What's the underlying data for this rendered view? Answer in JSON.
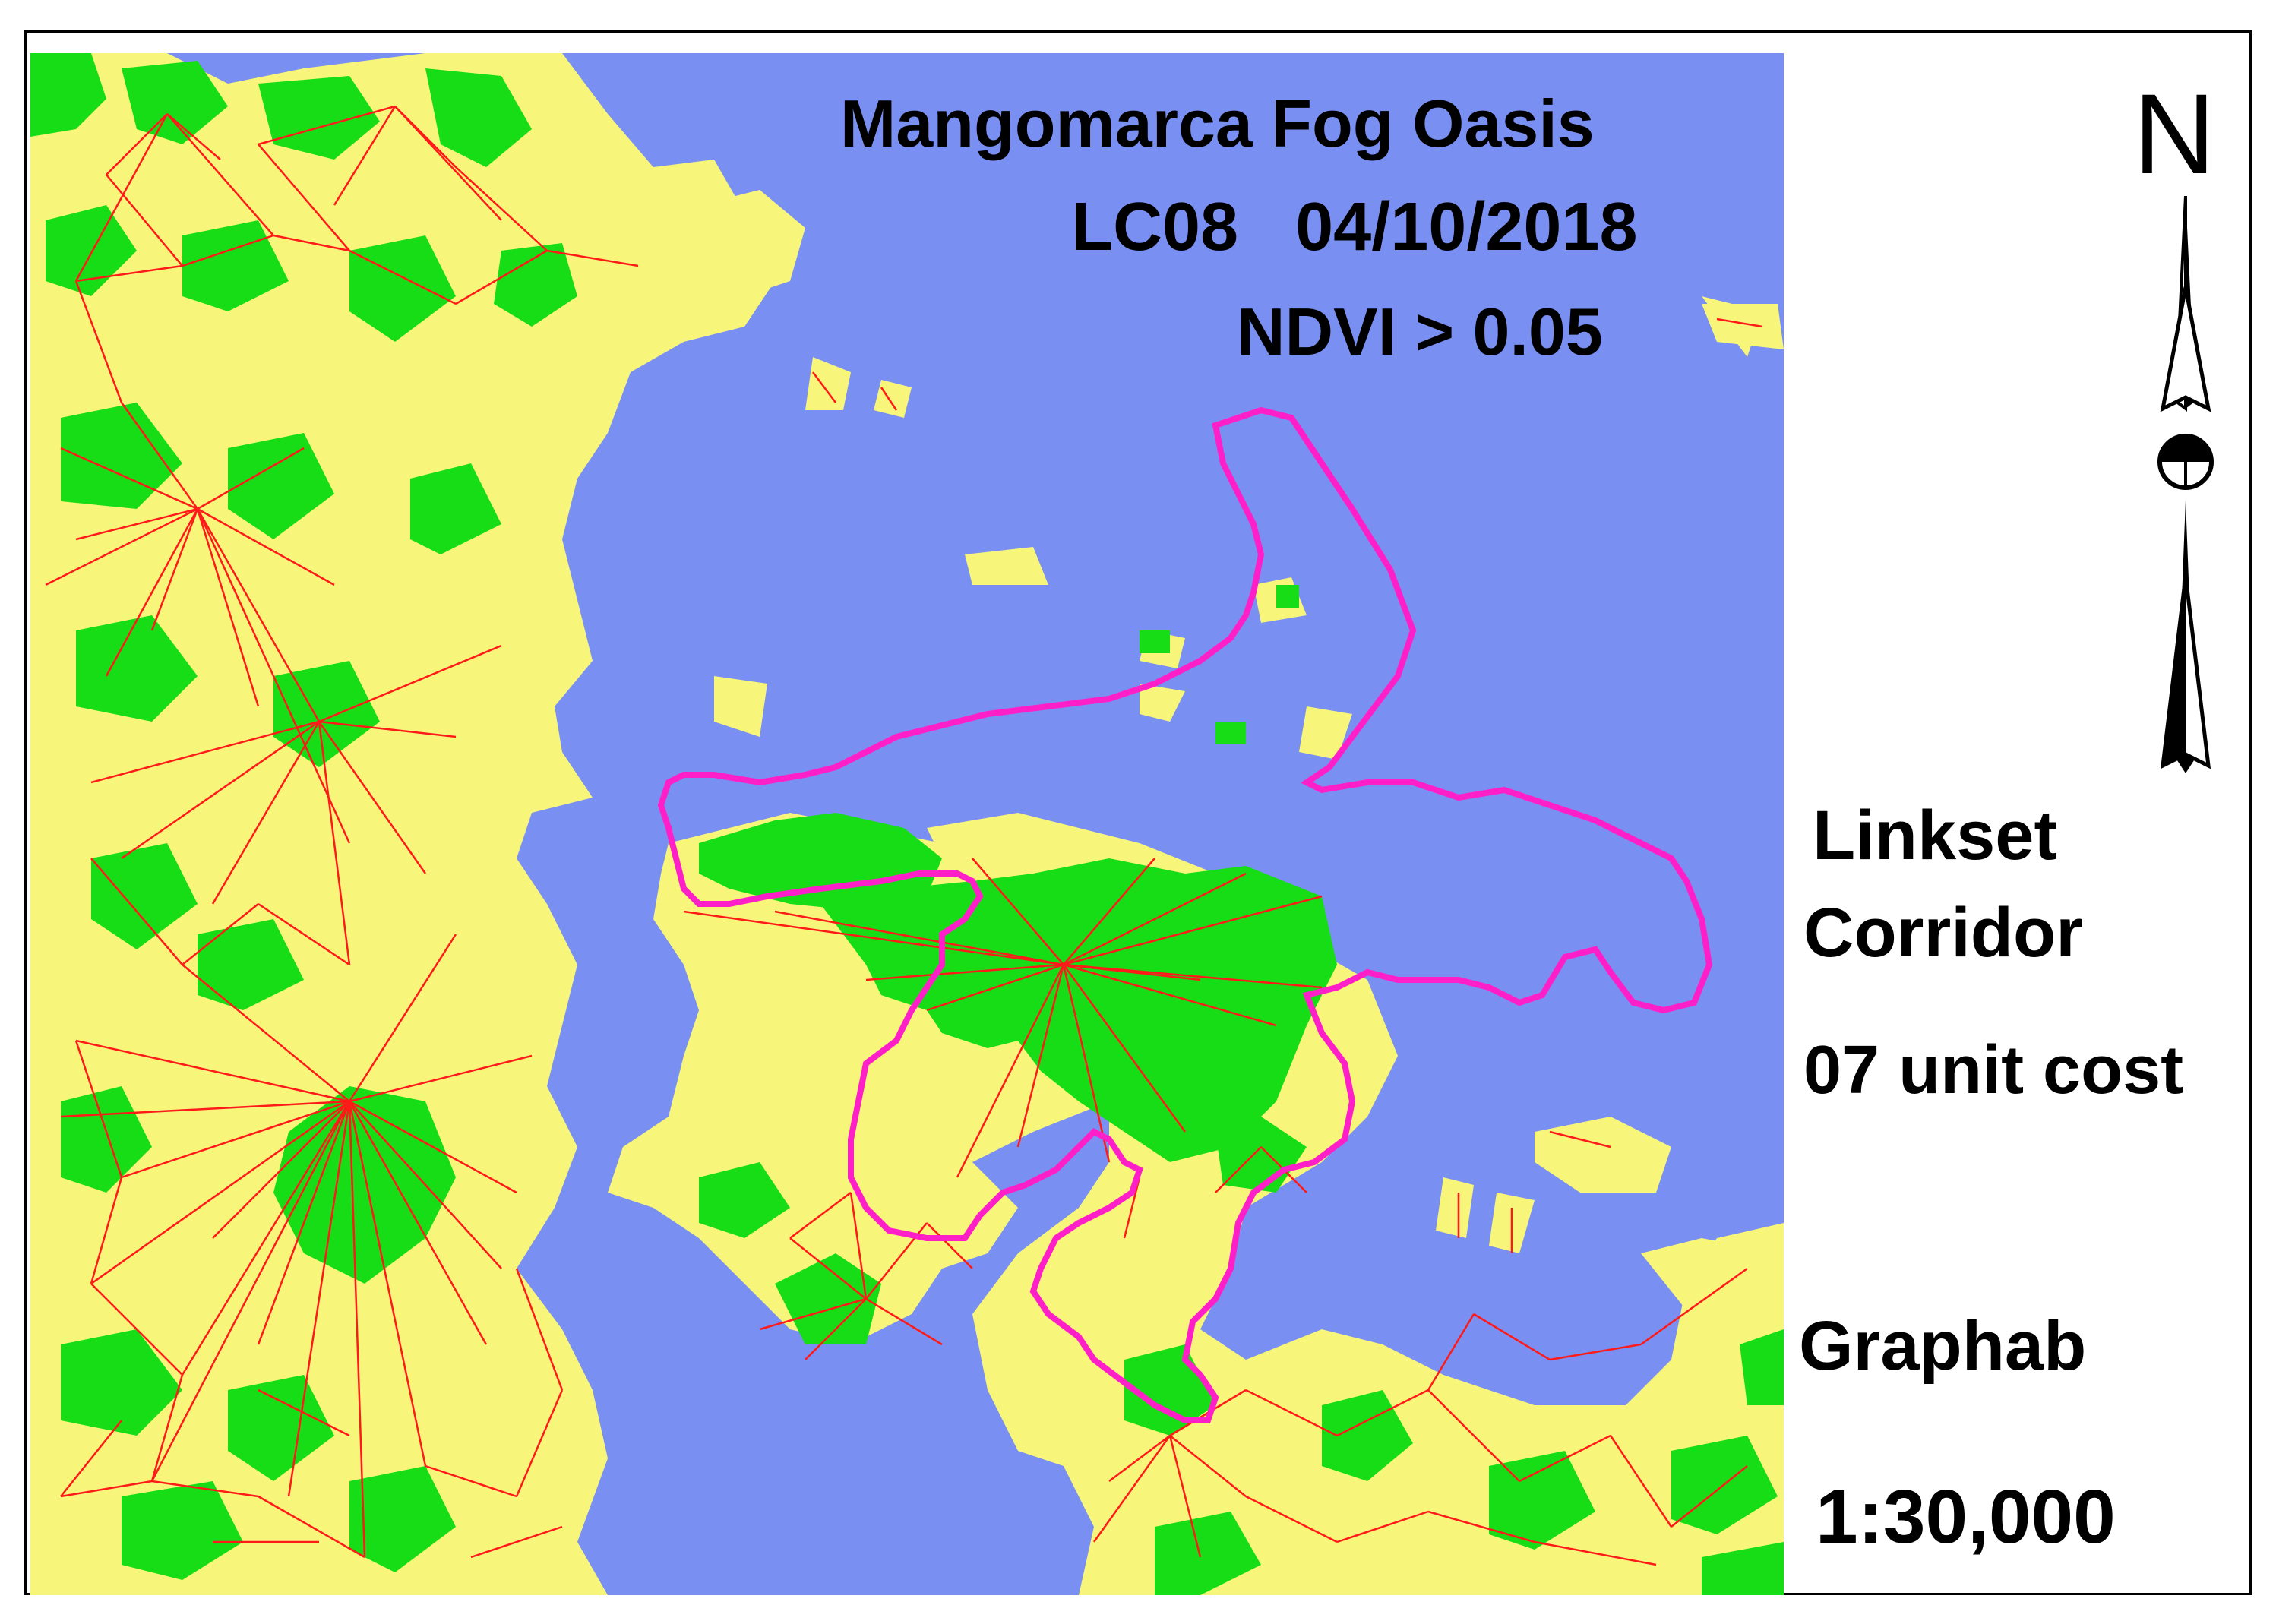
{
  "map": {
    "title": "Mangomarca Fog Oasis",
    "sensor_date": "LC08   04/10/2018",
    "threshold": "NDVI > 0.05",
    "colors": {
      "background": "#7a8ff2",
      "buffer": "#f7f57a",
      "vegetation": "#16dd16",
      "links": "#ff1a1a",
      "boundary": "#ff1fc8"
    }
  },
  "legend": {
    "line1": "Linkset",
    "line2": "Corridor",
    "cost": "07 unit cost",
    "software": "Graphab",
    "scale": "1:30,000"
  },
  "north": {
    "letter": "N",
    "icon": "north-arrow-icon"
  }
}
